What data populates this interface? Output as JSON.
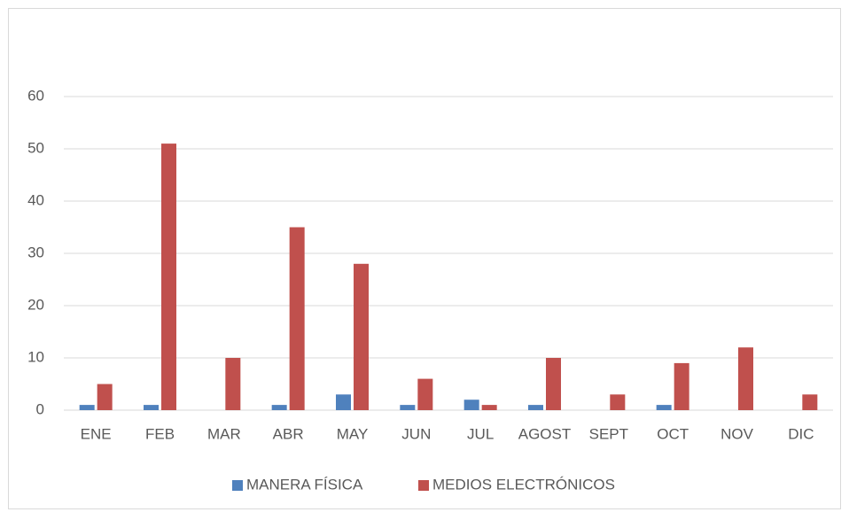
{
  "chart_data": {
    "type": "bar",
    "categories": [
      "ENE",
      "FEB",
      "MAR",
      "ABR",
      "MAY",
      "JUN",
      "JUL",
      "AGOST",
      "SEPT",
      "OCT",
      "NOV",
      "DIC"
    ],
    "series": [
      {
        "name": "MANERA FÍSICA",
        "color": "#4f81bd",
        "values": [
          1,
          1,
          0,
          1,
          3,
          1,
          2,
          1,
          0,
          1,
          0,
          0
        ]
      },
      {
        "name": "MEDIOS ELECTRÓNICOS",
        "color": "#c0504d",
        "values": [
          5,
          51,
          10,
          35,
          28,
          6,
          1,
          10,
          3,
          9,
          12,
          3
        ]
      }
    ],
    "ylim": [
      0,
      60
    ],
    "yticks": [
      0,
      10,
      20,
      30,
      40,
      50,
      60
    ],
    "grid": true,
    "legend": "bottom"
  }
}
